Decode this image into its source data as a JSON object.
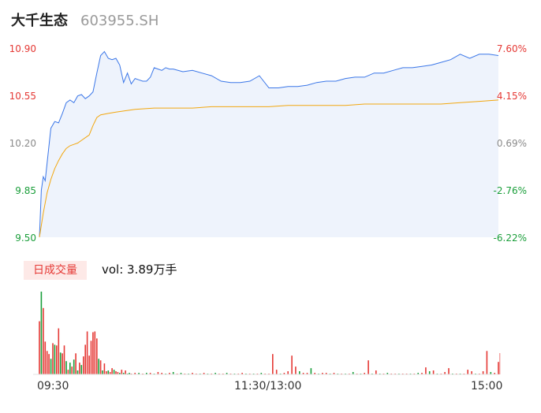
{
  "header": {
    "name": "大千生态",
    "code": "603955.SH"
  },
  "price_axis": {
    "left_labels": [
      "10.90",
      "10.55",
      "10.20",
      "9.85",
      "9.50"
    ],
    "right_labels": [
      "7.60%",
      "4.15%",
      "0.69%",
      "-2.76%",
      "-6.22%"
    ]
  },
  "volume": {
    "tab_label": "日成交量",
    "vol_text": "vol: 3.89万手"
  },
  "time_axis": [
    "09:30",
    "11:30/13:00",
    "15:00"
  ],
  "colors": {
    "price_line": "#3a76e8",
    "avg_line": "#f2a70f",
    "up": "#e53935",
    "down": "#1a9e3a",
    "area": "#eef3fc",
    "axis_red": "#e53935",
    "axis_green": "#1a9e3a",
    "axis_gray": "#8a8a8a"
  },
  "chart_data": [
    {
      "type": "line",
      "ylim": [
        9.5,
        10.9
      ],
      "xlim": [
        0,
        240
      ],
      "series": [
        {
          "name": "",
          "x": [
            0,
            1,
            2,
            3,
            4,
            6,
            8,
            10,
            12,
            14,
            16,
            18,
            20,
            22,
            24,
            26,
            28,
            30,
            32,
            34,
            36,
            38,
            40,
            42,
            44,
            46,
            48,
            50,
            52,
            54,
            56,
            58,
            60,
            62,
            64,
            66,
            68,
            70,
            75,
            80,
            85,
            90,
            95,
            100,
            105,
            110,
            115,
            120,
            125,
            130,
            135,
            140,
            145,
            150,
            155,
            160,
            165,
            170,
            175,
            180,
            185,
            190,
            195,
            200,
            205,
            210,
            215,
            220,
            225,
            230,
            235,
            240
          ],
          "y": [
            9.5,
            9.85,
            9.95,
            9.92,
            10.05,
            10.31,
            10.36,
            10.35,
            10.42,
            10.5,
            10.52,
            10.5,
            10.55,
            10.56,
            10.53,
            10.55,
            10.58,
            10.72,
            10.85,
            10.88,
            10.83,
            10.82,
            10.83,
            10.78,
            10.65,
            10.72,
            10.64,
            10.68,
            10.67,
            10.66,
            10.66,
            10.69,
            10.76,
            10.75,
            10.74,
            10.76,
            10.75,
            10.75,
            10.73,
            10.74,
            10.72,
            10.7,
            10.66,
            10.65,
            10.65,
            10.66,
            10.7,
            10.61,
            10.61,
            10.62,
            10.62,
            10.63,
            10.65,
            10.66,
            10.66,
            10.68,
            10.69,
            10.69,
            10.72,
            10.72,
            10.74,
            10.76,
            10.76,
            10.77,
            10.78,
            10.8,
            10.82,
            10.86,
            10.83,
            10.86,
            10.86,
            10.85
          ]
        },
        {
          "name": "",
          "x": [
            0,
            2,
            4,
            6,
            8,
            10,
            12,
            14,
            16,
            18,
            20,
            22,
            24,
            26,
            28,
            30,
            32,
            36,
            40,
            45,
            50,
            60,
            70,
            80,
            90,
            100,
            110,
            120,
            130,
            140,
            150,
            160,
            170,
            180,
            190,
            200,
            210,
            220,
            230,
            240
          ],
          "y": [
            9.5,
            9.68,
            9.83,
            9.93,
            10.01,
            10.07,
            10.12,
            10.16,
            10.18,
            10.19,
            10.2,
            10.22,
            10.24,
            10.26,
            10.33,
            10.39,
            10.41,
            10.42,
            10.43,
            10.44,
            10.45,
            10.46,
            10.46,
            10.46,
            10.47,
            10.47,
            10.47,
            10.47,
            10.48,
            10.48,
            10.48,
            10.48,
            10.49,
            10.49,
            10.49,
            10.49,
            10.49,
            10.5,
            10.51,
            10.52
          ]
        }
      ]
    },
    {
      "type": "bar",
      "series": [
        {
          "name": "vol",
          "x": [
            0,
            1,
            2,
            3,
            4,
            5,
            6,
            7,
            8,
            9,
            10,
            11,
            12,
            13,
            14,
            15,
            16,
            17,
            18,
            19,
            20,
            21,
            22,
            23,
            24,
            25,
            26,
            27,
            28,
            29,
            30,
            31,
            32,
            33,
            34,
            35,
            36,
            37,
            38,
            39,
            40,
            41,
            42,
            43,
            44,
            45,
            46,
            47,
            48,
            50,
            52,
            54,
            56,
            58,
            60,
            62,
            64,
            66,
            68,
            70,
            72,
            74,
            76,
            78,
            80,
            82,
            84,
            86,
            88,
            90,
            92,
            94,
            96,
            98,
            100,
            102,
            104,
            106,
            108,
            110,
            112,
            114,
            116,
            118,
            120,
            122,
            124,
            126,
            128,
            130,
            132,
            134,
            136,
            138,
            140,
            142,
            144,
            146,
            148,
            150,
            152,
            154,
            156,
            158,
            160,
            162,
            164,
            166,
            168,
            170,
            172,
            174,
            176,
            178,
            180,
            182,
            184,
            186,
            188,
            190,
            192,
            194,
            196,
            198,
            200,
            202,
            204,
            206,
            208,
            210,
            212,
            214,
            216,
            218,
            220,
            222,
            224,
            226,
            228,
            230,
            232,
            234,
            236,
            238,
            240
          ],
          "values": [
            68,
            106,
            85,
            42,
            30,
            26,
            20,
            40,
            38,
            37,
            59,
            28,
            27,
            37,
            17,
            6,
            15,
            10,
            19,
            27,
            5,
            15,
            12,
            23,
            38,
            55,
            24,
            43,
            54,
            55,
            46,
            20,
            18,
            5,
            14,
            4,
            5,
            3,
            8,
            6,
            4,
            3,
            2,
            6,
            2,
            5,
            1,
            2,
            1,
            2,
            2,
            1,
            2,
            2,
            1,
            3,
            2,
            1,
            2,
            3,
            1,
            2,
            1,
            1,
            2,
            1,
            1,
            2,
            1,
            1,
            2,
            1,
            1,
            2,
            1,
            1,
            1,
            2,
            1,
            1,
            1,
            1,
            2,
            1,
            1,
            26,
            6,
            1,
            2,
            4,
            24,
            10,
            4,
            2,
            2,
            8,
            2,
            1,
            2,
            2,
            1,
            2,
            1,
            1,
            1,
            1,
            3,
            1,
            1,
            2,
            18,
            1,
            5,
            1,
            1,
            2,
            1,
            1,
            1,
            1,
            1,
            1,
            1,
            2,
            2,
            9,
            4,
            5,
            1,
            1,
            3,
            8,
            1,
            1,
            1,
            1,
            6,
            4,
            1,
            1,
            4,
            30,
            3,
            2,
            16
          ],
          "colors": [
            "up",
            "down",
            "up",
            "up",
            "up",
            "up",
            "down",
            "up",
            "down",
            "up",
            "up",
            "down",
            "up",
            "up",
            "down",
            "up",
            "down",
            "up",
            "down",
            "up",
            "down",
            "up",
            "down",
            "up",
            "up",
            "up",
            "up",
            "up",
            "up",
            "up",
            "up",
            "down",
            "up",
            "down",
            "up",
            "up",
            "down",
            "up",
            "up",
            "down",
            "up",
            "up",
            "down",
            "up",
            "down",
            "up",
            "down",
            "down",
            "up",
            "up",
            "down",
            "up",
            "down",
            "up",
            "down",
            "up",
            "up",
            "down",
            "up",
            "down",
            "up",
            "down",
            "up",
            "down",
            "up",
            "up",
            "down",
            "up",
            "down",
            "up",
            "down",
            "up",
            "up",
            "down",
            "up",
            "down",
            "up",
            "up",
            "down",
            "up",
            "down",
            "up",
            "down",
            "up",
            "up",
            "up",
            "up",
            "down",
            "up",
            "up",
            "up",
            "up",
            "down",
            "up",
            "up",
            "down",
            "up",
            "down",
            "up",
            "up",
            "down",
            "up",
            "down",
            "up",
            "down",
            "up",
            "down",
            "up",
            "down",
            "up",
            "up",
            "down",
            "up",
            "down",
            "up",
            "down",
            "up",
            "up",
            "down",
            "up",
            "up",
            "down",
            "up",
            "down",
            "up",
            "up",
            "down",
            "up",
            "down",
            "up",
            "up",
            "up",
            "down",
            "up",
            "down",
            "up",
            "up",
            "up",
            "down",
            "up",
            "up",
            "up",
            "down",
            "up",
            "up"
          ]
        }
      ]
    }
  ]
}
